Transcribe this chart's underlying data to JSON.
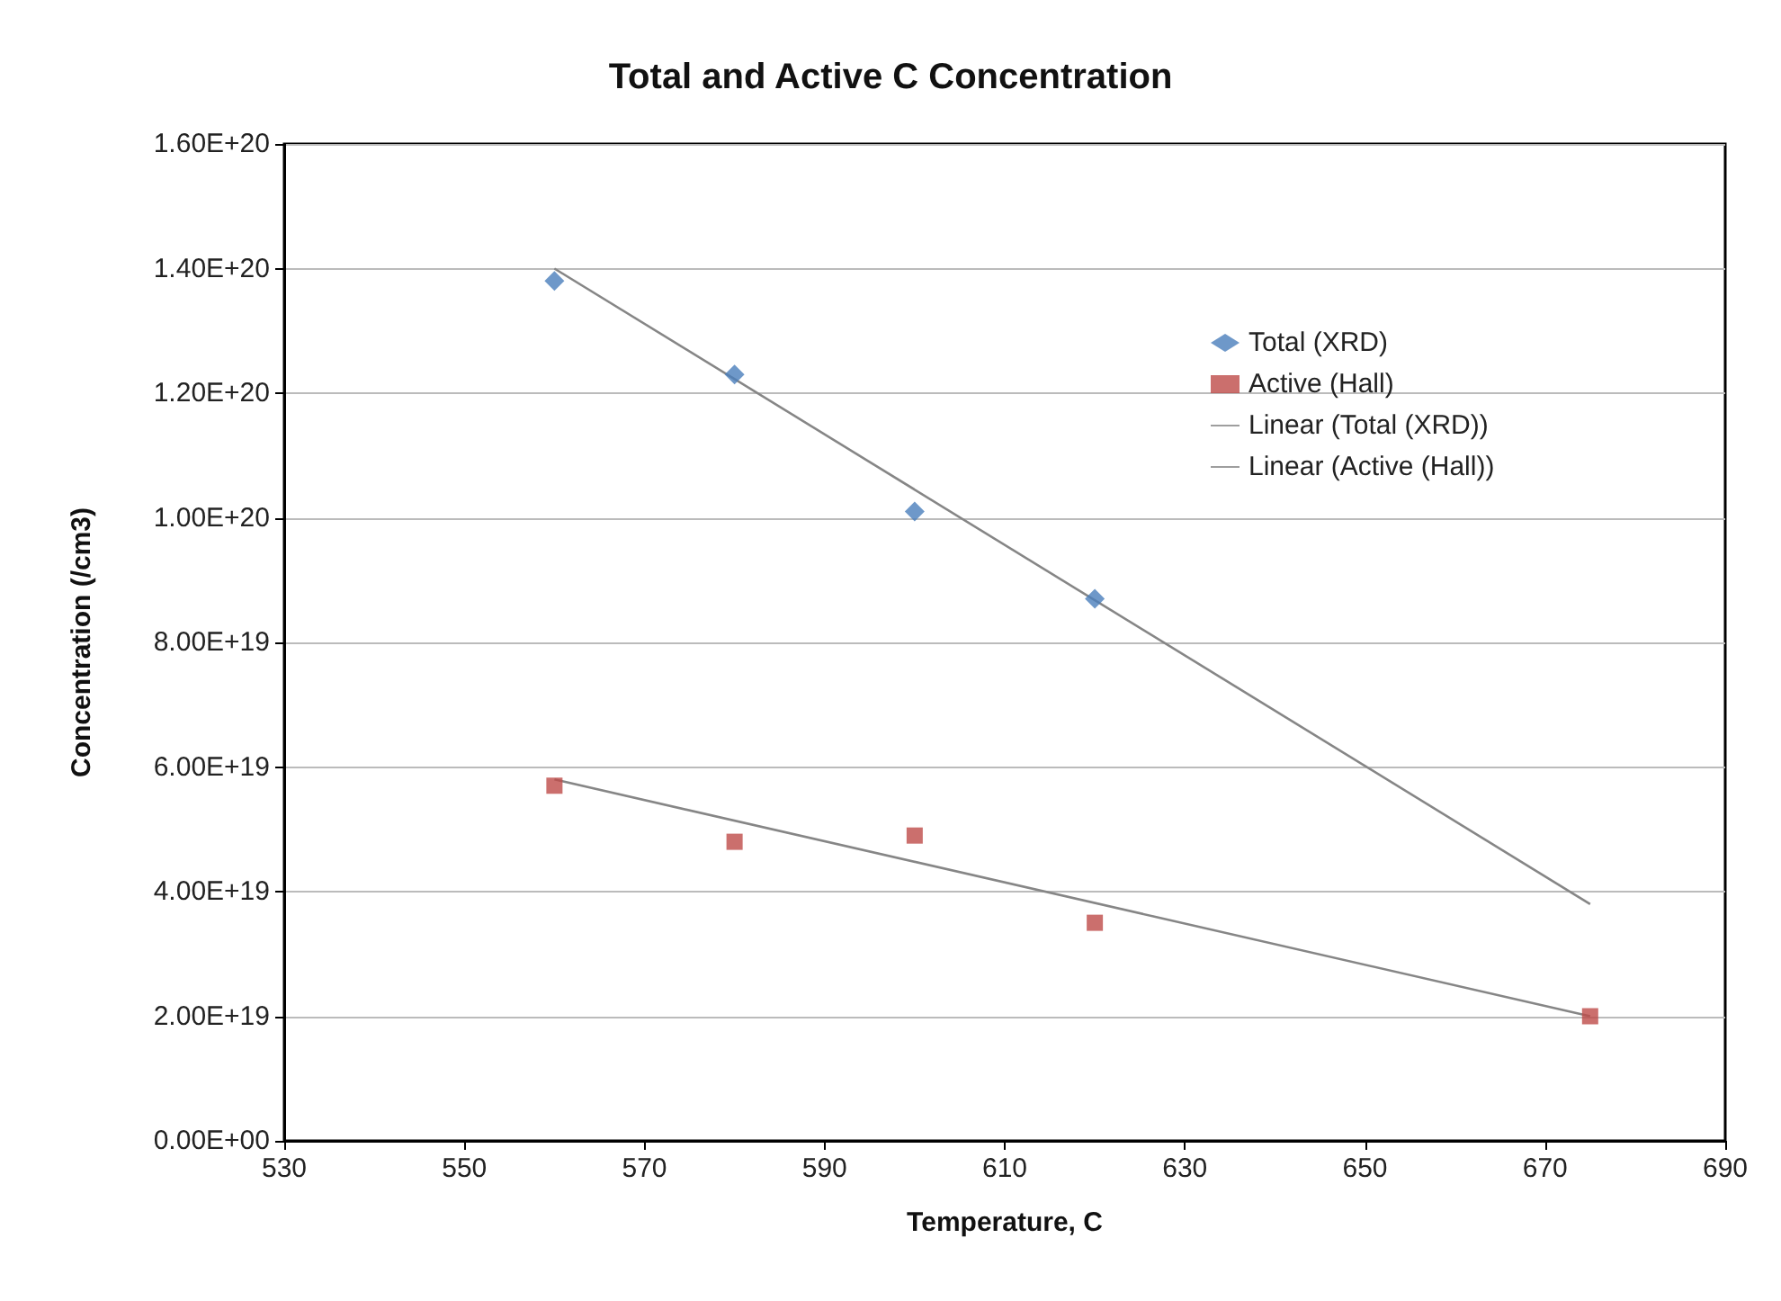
{
  "chart_data": {
    "type": "scatter",
    "title": "Total and Active C Concentration",
    "xlabel": "Temperature, C",
    "ylabel": "Concentration (/cm3)",
    "xlim": [
      530,
      690
    ],
    "xticks": [
      530,
      550,
      570,
      590,
      610,
      630,
      650,
      670,
      690
    ],
    "ylim": [
      0,
      1.6e+20
    ],
    "yticks": [
      {
        "value": 0,
        "label": "0.00E+00"
      },
      {
        "value": 2e+19,
        "label": "2.00E+19"
      },
      {
        "value": 4e+19,
        "label": "4.00E+19"
      },
      {
        "value": 6e+19,
        "label": "6.00E+19"
      },
      {
        "value": 8e+19,
        "label": "8.00E+19"
      },
      {
        "value": 1e+20,
        "label": "1.00E+20"
      },
      {
        "value": 1.2e+20,
        "label": "1.20E+20"
      },
      {
        "value": 1.4e+20,
        "label": "1.40E+20"
      },
      {
        "value": 1.6e+20,
        "label": "1.60E+20"
      }
    ],
    "grid": "y",
    "legend": "top right",
    "series": [
      {
        "name": "Total (XRD)",
        "type": "scatter",
        "marker": "diamond",
        "color": "#4a7ebb",
        "x": [
          560,
          580,
          600,
          620
        ],
        "values": [
          1.38e+20,
          1.23e+20,
          1.01e+20,
          8.7e+19
        ]
      },
      {
        "name": "Active (Hall)",
        "type": "scatter",
        "marker": "square",
        "color": "#be4b48",
        "x": [
          560,
          580,
          600,
          620,
          675
        ],
        "values": [
          5.7e+19,
          4.8e+19,
          4.9e+19,
          3.5e+19,
          2e+19
        ]
      },
      {
        "name": "Linear (Total (XRD))",
        "type": "line",
        "marker": "none",
        "color": "#868686",
        "x": [
          560,
          675
        ],
        "values": [
          1.4e+20,
          3.8e+19
        ]
      },
      {
        "name": "Linear (Active (Hall))",
        "type": "line",
        "marker": "none",
        "color": "#868686",
        "x": [
          560,
          675
        ],
        "values": [
          5.8e+19,
          2e+19
        ]
      }
    ]
  }
}
